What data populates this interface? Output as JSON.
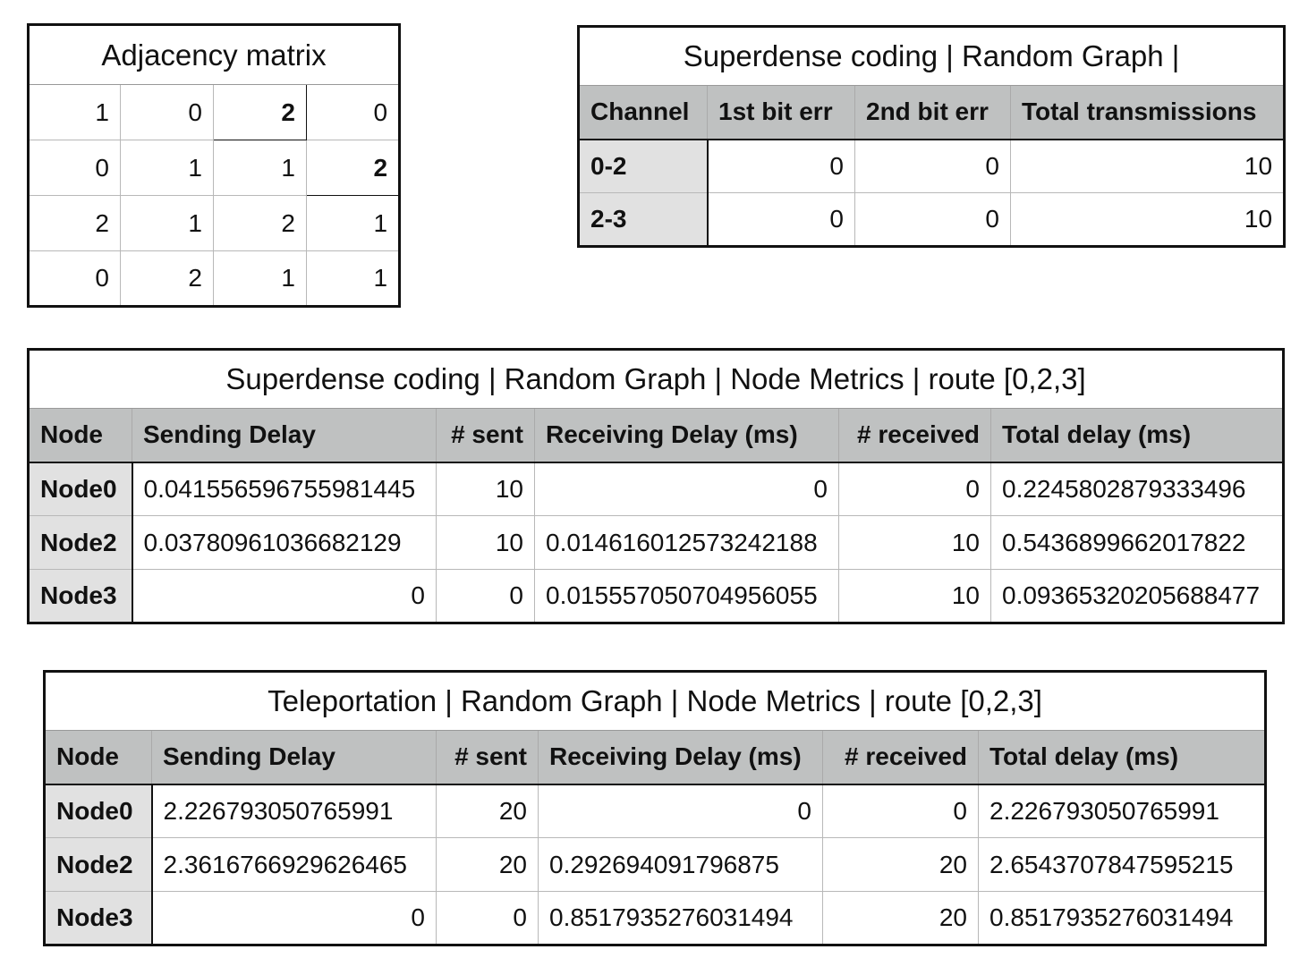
{
  "adjacency": {
    "title": "Adjacency matrix",
    "rows": [
      [
        "1",
        "0",
        "2",
        "0"
      ],
      [
        "0",
        "1",
        "1",
        "2"
      ],
      [
        "2",
        "1",
        "2",
        "1"
      ],
      [
        "0",
        "2",
        "1",
        "1"
      ]
    ]
  },
  "channel_table": {
    "title": "Superdense coding | Random Graph |",
    "headers": [
      "Channel",
      "1st bit err",
      "2nd bit err",
      "Total transmissions"
    ],
    "rows": [
      [
        "0-2",
        "0",
        "0",
        "10"
      ],
      [
        "2-3",
        "0",
        "0",
        "10"
      ]
    ]
  },
  "superdense_nodes": {
    "title": "Superdense coding | Random Graph | Node Metrics | route [0,2,3]",
    "headers": [
      "Node",
      "Sending Delay",
      "# sent",
      "Receiving Delay (ms)",
      "# received",
      "Total delay (ms)"
    ],
    "rows": [
      [
        "Node0",
        "0.041556596755981445",
        "10",
        "0",
        "0",
        "0.2245802879333496"
      ],
      [
        "Node2",
        "0.03780961036682129",
        "10",
        "0.014616012573242188",
        "10",
        "0.5436899662017822"
      ],
      [
        "Node3",
        "0",
        "0",
        "0.015557050704956055",
        "10",
        "0.09365320205688477"
      ]
    ]
  },
  "teleport_nodes": {
    "title": "Teleportation | Random Graph | Node Metrics | route [0,2,3]",
    "headers": [
      "Node",
      "Sending Delay",
      "# sent",
      "Receiving Delay (ms)",
      "# received",
      "Total delay (ms)"
    ],
    "rows": [
      [
        "Node0",
        "2.226793050765991",
        "20",
        "0",
        "0",
        "2.226793050765991"
      ],
      [
        "Node2",
        "2.3616766929626465",
        "20",
        "0.292694091796875",
        "20",
        "2.6543707847595215"
      ],
      [
        "Node3",
        "0",
        "0",
        "0.8517935276031494",
        "20",
        "0.8517935276031494"
      ]
    ]
  }
}
